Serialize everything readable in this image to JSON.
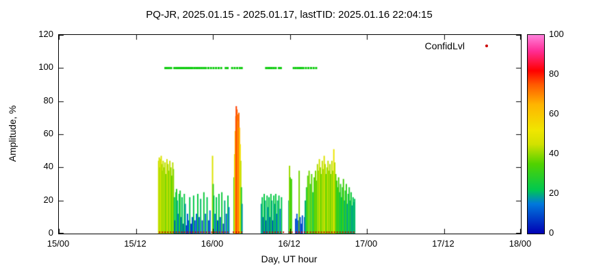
{
  "title": "PQ-JR, 2025.01.15 - 2025.01.17, lastTID: 2025.01.16 22:04:15",
  "legend": {
    "label": "ConfidLvl",
    "marker_color": "#cc0000"
  },
  "axes": {
    "xlabel": "Day, UT hour",
    "ylabel": "Amplitude, %",
    "ylim": [
      0,
      120
    ],
    "xlim_hours": [
      0,
      72
    ],
    "x_ticks": [
      {
        "hour": 0,
        "label": "15/00"
      },
      {
        "hour": 12,
        "label": "15/12"
      },
      {
        "hour": 24,
        "label": "16/00"
      },
      {
        "hour": 36,
        "label": "16/12"
      },
      {
        "hour": 48,
        "label": "17/00"
      },
      {
        "hour": 60,
        "label": "17/12"
      },
      {
        "hour": 72,
        "label": "18/00"
      }
    ],
    "y_ticks": [
      0,
      20,
      40,
      60,
      80,
      100,
      120
    ]
  },
  "colorbar": {
    "min": 0,
    "max": 100,
    "ticks": [
      0,
      20,
      40,
      60,
      80,
      100
    ],
    "stops": [
      {
        "v": 0,
        "c": "#0000b4"
      },
      {
        "v": 15,
        "c": "#0078dc"
      },
      {
        "v": 22,
        "c": "#00c850"
      },
      {
        "v": 35,
        "c": "#50d200"
      },
      {
        "v": 45,
        "c": "#d2e100"
      },
      {
        "v": 52,
        "c": "#f0e600"
      },
      {
        "v": 65,
        "c": "#ffb400"
      },
      {
        "v": 75,
        "c": "#ff5a00"
      },
      {
        "v": 82,
        "c": "#ff0000"
      },
      {
        "v": 92,
        "c": "#ff2d96"
      },
      {
        "v": 100,
        "c": "#ff82dc"
      }
    ]
  },
  "chart_data": {
    "type": "bar",
    "title": "PQ-JR, 2025.01.15 - 2025.01.17, lastTID: 2025.01.16 22:04:15",
    "xlabel": "Day, UT hour",
    "ylabel": "Amplitude, %",
    "ylim": [
      0,
      120
    ],
    "xlim_labels": [
      "15/00",
      "18/00"
    ],
    "x_unit": "hours since 2025.01.15 00:00 UT",
    "color_encoding": "bar color = amplitude value mapped through rainbow palette of colorbar (0-100)",
    "bars": [
      [
        15.55,
        44
      ],
      [
        15.65,
        46
      ],
      [
        15.75,
        40
      ],
      [
        15.85,
        45
      ],
      [
        15.95,
        47
      ],
      [
        16.05,
        42
      ],
      [
        16.15,
        38
      ],
      [
        16.25,
        44
      ],
      [
        16.4,
        40
      ],
      [
        16.55,
        43
      ],
      [
        16.7,
        36
      ],
      [
        16.85,
        45
      ],
      [
        17.0,
        42
      ],
      [
        17.15,
        38
      ],
      [
        17.3,
        44
      ],
      [
        17.45,
        40
      ],
      [
        17.6,
        35
      ],
      [
        17.75,
        43
      ],
      [
        17.85,
        39
      ],
      [
        18.0,
        22
      ],
      [
        18.1,
        8
      ],
      [
        18.25,
        25
      ],
      [
        18.35,
        27
      ],
      [
        18.45,
        20
      ],
      [
        18.6,
        12
      ],
      [
        18.75,
        24
      ],
      [
        18.9,
        26
      ],
      [
        19.05,
        10
      ],
      [
        19.2,
        22
      ],
      [
        19.4,
        6
      ],
      [
        19.55,
        24
      ],
      [
        19.7,
        18
      ],
      [
        19.9,
        5
      ],
      [
        20.05,
        12
      ],
      [
        20.2,
        8
      ],
      [
        20.4,
        22
      ],
      [
        20.6,
        6
      ],
      [
        20.8,
        10
      ],
      [
        21.0,
        23
      ],
      [
        21.2,
        8
      ],
      [
        21.45,
        12
      ],
      [
        21.65,
        24
      ],
      [
        21.85,
        10
      ],
      [
        22.1,
        21
      ],
      [
        22.35,
        8
      ],
      [
        22.6,
        25
      ],
      [
        22.85,
        12
      ],
      [
        23.1,
        22
      ],
      [
        23.35,
        8
      ],
      [
        23.55,
        14
      ],
      [
        23.95,
        47
      ],
      [
        24.05,
        30
      ],
      [
        24.15,
        23
      ],
      [
        24.35,
        12
      ],
      [
        24.55,
        22
      ],
      [
        24.75,
        8
      ],
      [
        24.95,
        24
      ],
      [
        25.15,
        10
      ],
      [
        25.4,
        25
      ],
      [
        25.65,
        6
      ],
      [
        25.85,
        20
      ],
      [
        26.1,
        12
      ],
      [
        26.35,
        23
      ],
      [
        26.5,
        16
      ],
      [
        27.3,
        34
      ],
      [
        27.4,
        48
      ],
      [
        27.5,
        62
      ],
      [
        27.6,
        71
      ],
      [
        27.65,
        77
      ],
      [
        27.75,
        75
      ],
      [
        27.85,
        72
      ],
      [
        27.95,
        68
      ],
      [
        28.05,
        73
      ],
      [
        28.15,
        64
      ],
      [
        28.25,
        54
      ],
      [
        28.35,
        44
      ],
      [
        28.45,
        28
      ],
      [
        28.55,
        18
      ],
      [
        31.55,
        18
      ],
      [
        31.7,
        22
      ],
      [
        31.85,
        10
      ],
      [
        32.0,
        24
      ],
      [
        32.15,
        20
      ],
      [
        32.3,
        8
      ],
      [
        32.45,
        23
      ],
      [
        32.6,
        16
      ],
      [
        32.75,
        22
      ],
      [
        32.9,
        10
      ],
      [
        33.05,
        24
      ],
      [
        33.2,
        20
      ],
      [
        33.35,
        8
      ],
      [
        33.5,
        23
      ],
      [
        33.65,
        18
      ],
      [
        33.8,
        24
      ],
      [
        33.95,
        12
      ],
      [
        34.1,
        20
      ],
      [
        34.3,
        23
      ],
      [
        34.5,
        15
      ],
      [
        34.7,
        22
      ],
      [
        35.85,
        20
      ],
      [
        35.95,
        41
      ],
      [
        36.05,
        34
      ],
      [
        36.25,
        33
      ],
      [
        36.9,
        9
      ],
      [
        37.1,
        12
      ],
      [
        37.3,
        8
      ],
      [
        37.45,
        38
      ],
      [
        37.6,
        10
      ],
      [
        37.8,
        6
      ],
      [
        37.95,
        11
      ],
      [
        38.3,
        10
      ],
      [
        38.4,
        20
      ],
      [
        38.6,
        28
      ],
      [
        38.8,
        35
      ],
      [
        39.0,
        38
      ],
      [
        39.2,
        30
      ],
      [
        39.4,
        36
      ],
      [
        39.6,
        25
      ],
      [
        39.8,
        34
      ],
      [
        40.0,
        38
      ],
      [
        40.15,
        32
      ],
      [
        40.3,
        42
      ],
      [
        40.45,
        38
      ],
      [
        40.6,
        45
      ],
      [
        40.75,
        40
      ],
      [
        40.9,
        36
      ],
      [
        41.05,
        44
      ],
      [
        41.2,
        39
      ],
      [
        41.35,
        47
      ],
      [
        41.5,
        42
      ],
      [
        41.65,
        36
      ],
      [
        41.8,
        40
      ],
      [
        41.95,
        44
      ],
      [
        42.1,
        38
      ],
      [
        42.25,
        42
      ],
      [
        42.4,
        36
      ],
      [
        42.55,
        44
      ],
      [
        42.7,
        38
      ],
      [
        42.85,
        51
      ],
      [
        43.0,
        43
      ],
      [
        43.15,
        36
      ],
      [
        43.3,
        32
      ],
      [
        43.45,
        28
      ],
      [
        43.6,
        34
      ],
      [
        43.75,
        25
      ],
      [
        43.9,
        30
      ],
      [
        44.05,
        22
      ],
      [
        44.2,
        28
      ],
      [
        44.35,
        33
      ],
      [
        44.5,
        20
      ],
      [
        44.65,
        26
      ],
      [
        44.8,
        30
      ],
      [
        44.95,
        18
      ],
      [
        45.1,
        24
      ],
      [
        45.25,
        28
      ],
      [
        45.4,
        20
      ],
      [
        45.55,
        25
      ],
      [
        45.7,
        17
      ],
      [
        45.85,
        22
      ],
      [
        46.0,
        19
      ],
      [
        46.1,
        21
      ]
    ],
    "confidence_markers": {
      "y": 100,
      "color": "#00c800",
      "x_hours": [
        16.6,
        16.9,
        17.2,
        17.5,
        18.0,
        18.3,
        18.55,
        18.8,
        19.05,
        19.3,
        19.55,
        19.8,
        20.05,
        20.3,
        20.55,
        20.8,
        21.1,
        21.4,
        21.7,
        22.0,
        22.3,
        22.6,
        22.9,
        23.3,
        23.7,
        24.1,
        24.5,
        24.9,
        25.3,
        26.0,
        26.3,
        27.0,
        27.4,
        27.8,
        28.2,
        28.5,
        32.3,
        32.6,
        32.9,
        33.2,
        33.5,
        33.8,
        34.3,
        34.6,
        36.6,
        36.9,
        37.2,
        37.5,
        37.8,
        38.1,
        38.5,
        38.9,
        39.3,
        39.7,
        40.1
      ]
    },
    "baseline_markers": {
      "y": 0,
      "color": "#cc0000",
      "segments_hours": [
        [
          15.6,
          17.9
        ],
        [
          18.2,
          21.4
        ],
        [
          21.6,
          24.3
        ],
        [
          24.5,
          26.6
        ],
        [
          27.1,
          28.7
        ],
        [
          31.9,
          34.9
        ],
        [
          35.8,
          36.3
        ],
        [
          36.9,
          38.9
        ],
        [
          39.1,
          41.8
        ],
        [
          42.0,
          46.2
        ]
      ]
    }
  }
}
